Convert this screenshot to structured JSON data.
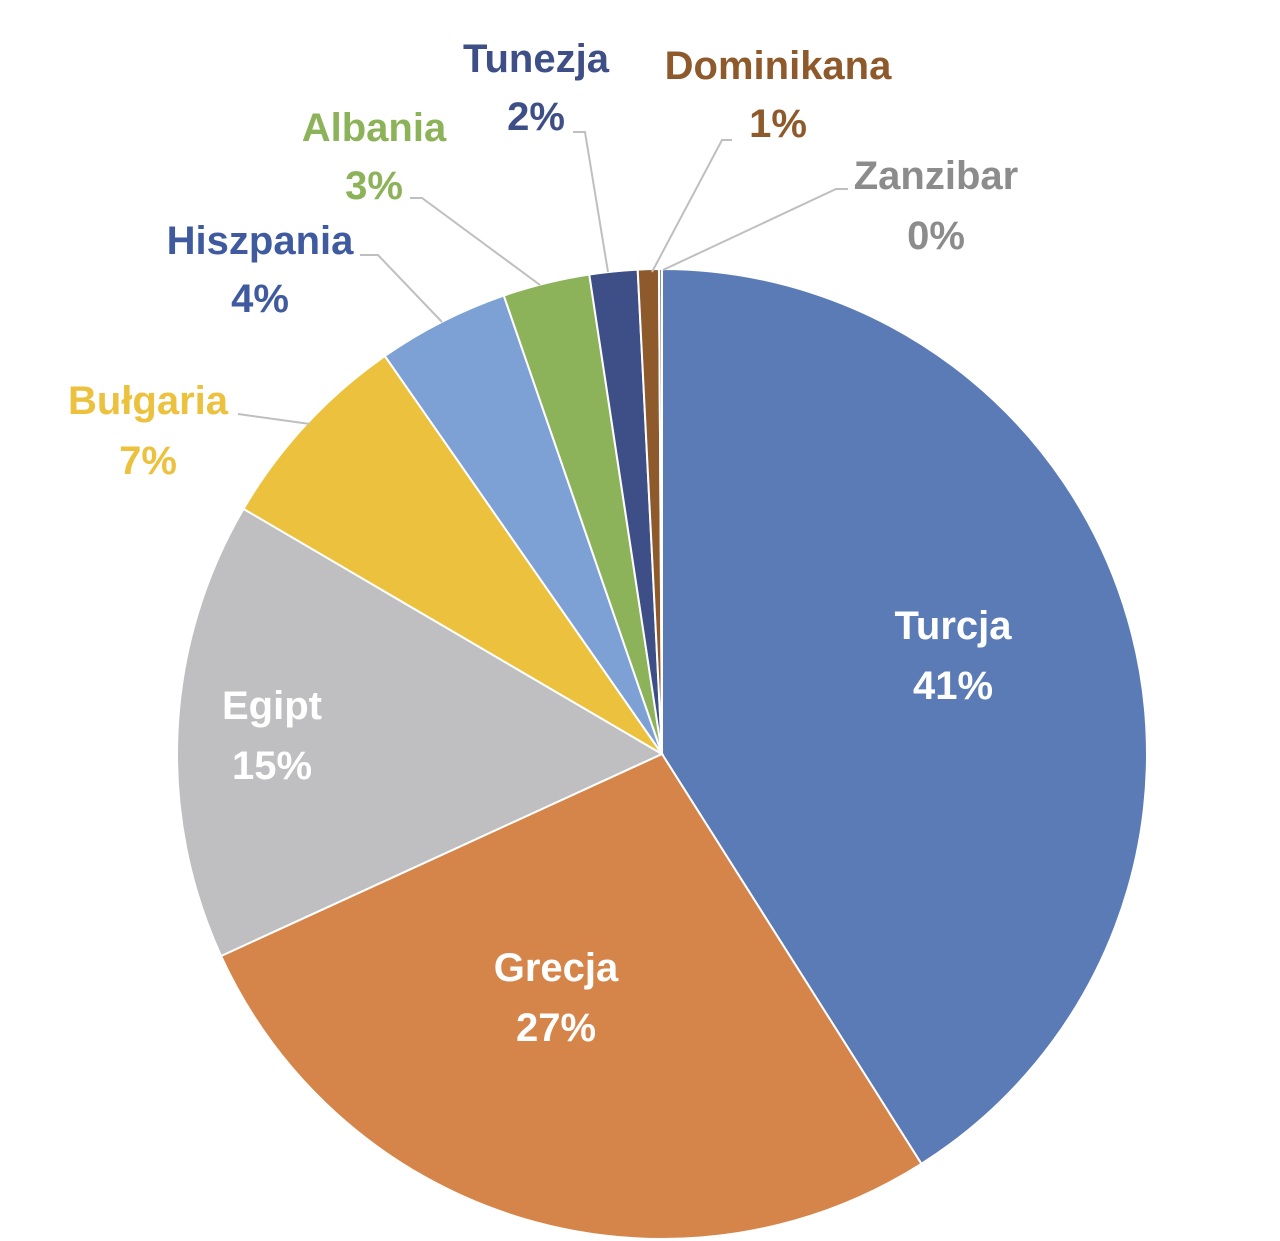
{
  "chart_data": {
    "type": "pie",
    "title": "",
    "slices": [
      {
        "name": "Turcja",
        "percent_label": "41%",
        "value": 41.1,
        "color": "#5B7BB6",
        "label_color": "#ffffff",
        "label_inside": true
      },
      {
        "name": "Grecja",
        "percent_label": "27%",
        "value": 27.2,
        "color": "#D6854A",
        "label_color": "#ffffff",
        "label_inside": true
      },
      {
        "name": "Egipt",
        "percent_label": "15%",
        "value": 15.3,
        "color": "#BFBFC1",
        "label_color": "#ffffff",
        "label_inside": true
      },
      {
        "name": "Bułgaria",
        "percent_label": "7%",
        "value": 6.9,
        "color": "#EBC13D",
        "label_color": "#EBC13D",
        "label_inside": false
      },
      {
        "name": "Hiszpania",
        "percent_label": "4%",
        "value": 4.4,
        "color": "#7DA1D4",
        "label_color": "#3F5A9E",
        "label_inside": false
      },
      {
        "name": "Albania",
        "percent_label": "3%",
        "value": 2.9,
        "color": "#8DB35A",
        "label_color": "#8DB35A",
        "label_inside": false
      },
      {
        "name": "Tunezja",
        "percent_label": "2%",
        "value": 1.6,
        "color": "#3D4F86",
        "label_color": "#3D4F86",
        "label_inside": false
      },
      {
        "name": "Dominikana",
        "percent_label": "1%",
        "value": 0.7,
        "color": "#8E5A2C",
        "label_color": "#8E5A2C",
        "label_inside": false
      },
      {
        "name": "Zanzibar",
        "percent_label": "0%",
        "value": 0.1,
        "color": "#8C8C8C",
        "label_color": "#8C8C8C",
        "label_inside": false
      }
    ],
    "start_angle": "12 o'clock",
    "direction": "clockwise",
    "legend": "none"
  }
}
